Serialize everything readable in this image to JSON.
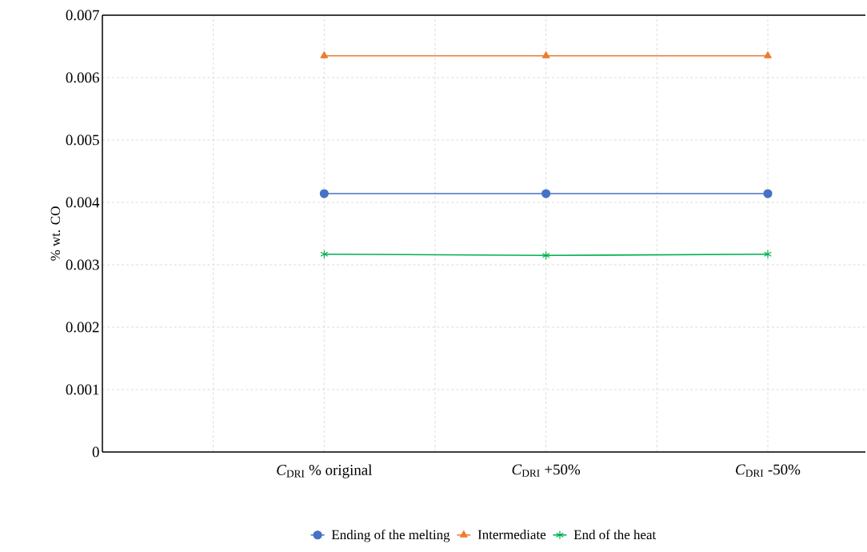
{
  "chart_data": {
    "type": "line",
    "categories": [
      "*C*$_{DRI}$ % original",
      "*C*$_{DRI}$ +50%",
      "*C*$_{DRI}$ -50%"
    ],
    "ylabel": "% wt. CO",
    "ylim": [
      0,
      0.007
    ],
    "yticks": [
      0,
      0.001,
      0.002,
      0.003,
      0.004,
      0.005,
      0.006,
      0.007
    ],
    "grid": true,
    "legend": "bottom",
    "series": [
      {
        "name": "Ending of the melting",
        "color": "#4472c4",
        "marker": "circle",
        "values": [
          0.00414,
          0.00414,
          0.00414
        ]
      },
      {
        "name": "Intermediate",
        "color": "#ed7d31",
        "marker": "triangle",
        "values": [
          0.00635,
          0.00635,
          0.00635
        ]
      },
      {
        "name": "End of the heat",
        "color": "#00b050",
        "marker": "cross",
        "values": [
          0.00317,
          0.00315,
          0.00317
        ]
      }
    ]
  }
}
